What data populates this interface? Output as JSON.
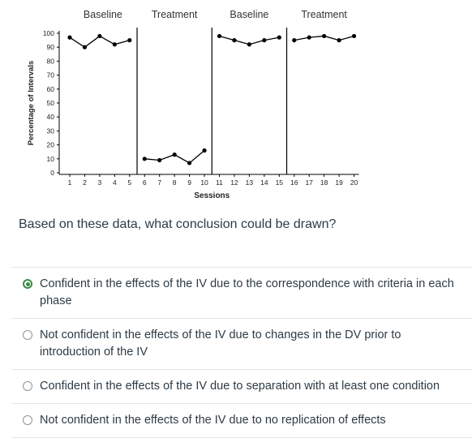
{
  "chart_data": {
    "type": "line",
    "ylabel": "Percentage of Intervals",
    "xlabel": "Sessions",
    "ylim": [
      0,
      100
    ],
    "yticks": [
      0,
      10,
      20,
      30,
      40,
      50,
      60,
      70,
      80,
      90,
      100
    ],
    "xticks": [
      1,
      2,
      3,
      4,
      5,
      6,
      7,
      8,
      9,
      10,
      11,
      12,
      13,
      14,
      15,
      16,
      17,
      18,
      19,
      20
    ],
    "phase_labels": [
      "Baseline",
      "Treatment",
      "Baseline",
      "Treatment"
    ],
    "phase_change_after": [
      5.5,
      10.5,
      15.5
    ],
    "series": [
      {
        "phase": "Baseline",
        "x": [
          1,
          2,
          3,
          4,
          5
        ],
        "values": [
          97,
          90,
          98,
          92,
          95
        ]
      },
      {
        "phase": "Treatment",
        "x": [
          6,
          7,
          8,
          9,
          10
        ],
        "values": [
          10,
          9,
          13,
          7,
          16
        ]
      },
      {
        "phase": "Baseline",
        "x": [
          11,
          12,
          13,
          14,
          15
        ],
        "values": [
          98,
          95,
          92,
          95,
          97
        ]
      },
      {
        "phase": "Treatment",
        "x": [
          16,
          17,
          18,
          19,
          20
        ],
        "values": [
          95,
          97,
          98,
          95,
          98
        ]
      }
    ],
    "grid": false,
    "line_color": "#000000"
  },
  "question": "Based on these data, what conclusion could be drawn?",
  "options": [
    {
      "label": "Confident in the effects of the IV due to the correspondence with criteria in each phase",
      "selected": true
    },
    {
      "label": "Not confident in the effects of the IV due to changes in the DV prior to introduction of the IV",
      "selected": false
    },
    {
      "label": "Confident in the effects of the IV due to separation with at least one condition",
      "selected": false
    },
    {
      "label": "Not confident in the effects of the IV due to no replication of effects",
      "selected": false
    }
  ],
  "colors": {
    "selected_radio": "#3c8c46",
    "text": "#2d3b45",
    "divider": "#e3e6e8"
  }
}
